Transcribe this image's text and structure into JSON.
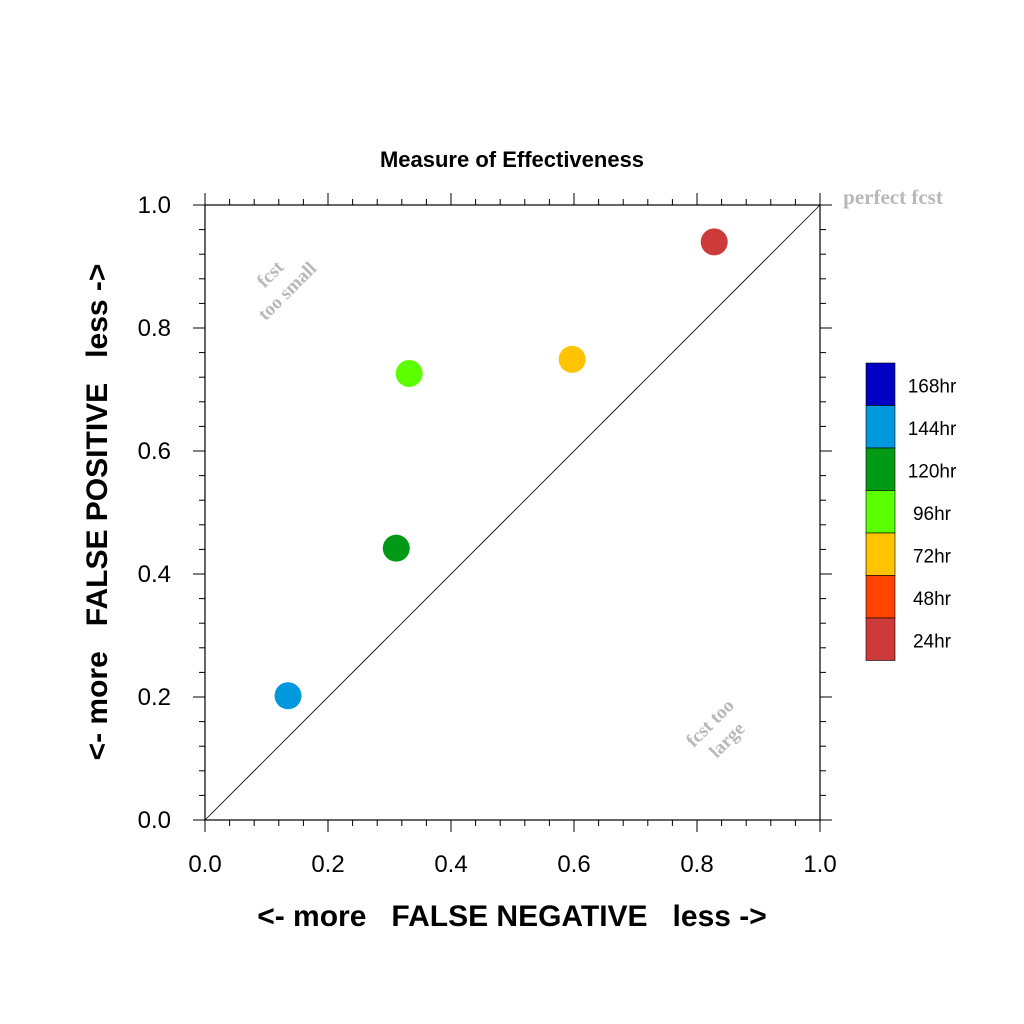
{
  "chart_data": {
    "type": "scatter",
    "title": "Measure of Effectiveness",
    "xlabel": "<- more   FALSE NEGATIVE   less ->",
    "ylabel": "<- more   FALSE POSITIVE   less ->",
    "xlim": [
      0.0,
      1.0
    ],
    "ylim": [
      0.0,
      1.0
    ],
    "xticks": [
      "0.0",
      "0.2",
      "0.4",
      "0.6",
      "0.8",
      "1.0"
    ],
    "yticks": [
      "0.0",
      "0.2",
      "0.4",
      "0.6",
      "0.8",
      "1.0"
    ],
    "grid": false,
    "legend_placement": "right",
    "annotations": {
      "perfect": "perfect fcst",
      "too_small_line1": "fcst",
      "too_small_line2": "too small",
      "too_large_line1": "fcst too",
      "too_large_line2": "large"
    },
    "legend": [
      {
        "label": "168hr",
        "color": "#0000c4"
      },
      {
        "label": "144hr",
        "color": "#0099dd"
      },
      {
        "label": "120hr",
        "color": "#009a17"
      },
      {
        "label": "96hr",
        "color": "#5cff00"
      },
      {
        "label": "72hr",
        "color": "#ffc300"
      },
      {
        "label": "48hr",
        "color": "#ff4400"
      },
      {
        "label": "24hr",
        "color": "#cc3a3a"
      }
    ],
    "series": [
      {
        "name": "24hr",
        "color": "#cc3a3a",
        "x": 0.828,
        "y": 0.94
      },
      {
        "name": "72hr",
        "color": "#ffc300",
        "x": 0.597,
        "y": 0.749
      },
      {
        "name": "96hr",
        "color": "#5cff00",
        "x": 0.332,
        "y": 0.726
      },
      {
        "name": "120hr",
        "color": "#009a17",
        "x": 0.311,
        "y": 0.442
      },
      {
        "name": "144hr",
        "color": "#0099dd",
        "x": 0.135,
        "y": 0.202
      }
    ]
  }
}
